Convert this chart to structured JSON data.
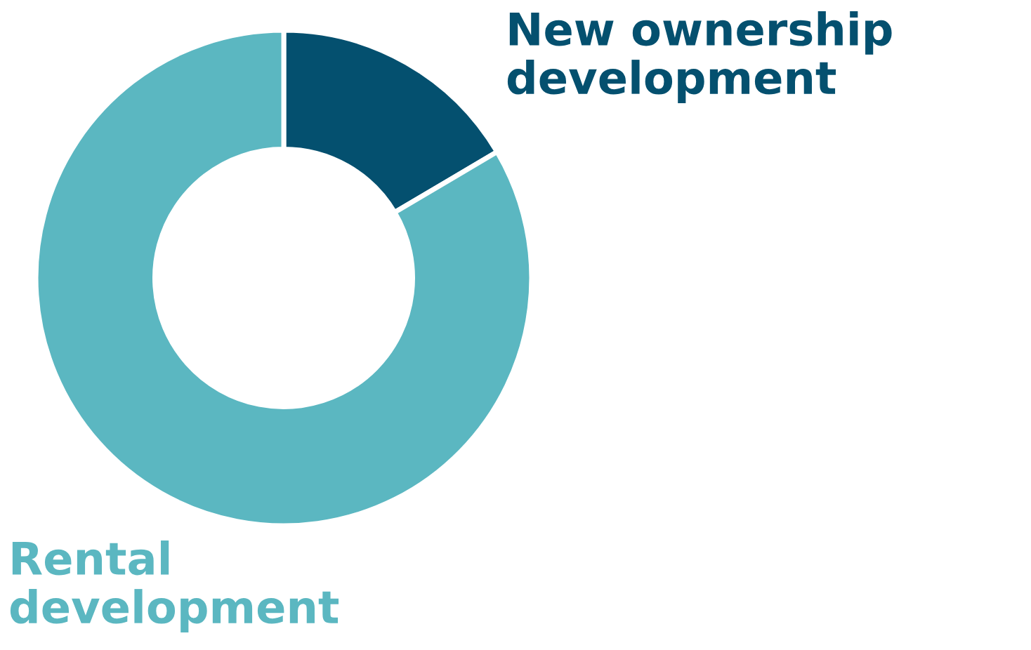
{
  "chart_data": {
    "type": "donut",
    "categories": [
      "New ownership\ndevelopment",
      "Rental\ndevelopment"
    ],
    "values": [
      16.5,
      83.5
    ],
    "colors": [
      "#04506f",
      "#5bb7c1"
    ],
    "legend": false
  }
}
